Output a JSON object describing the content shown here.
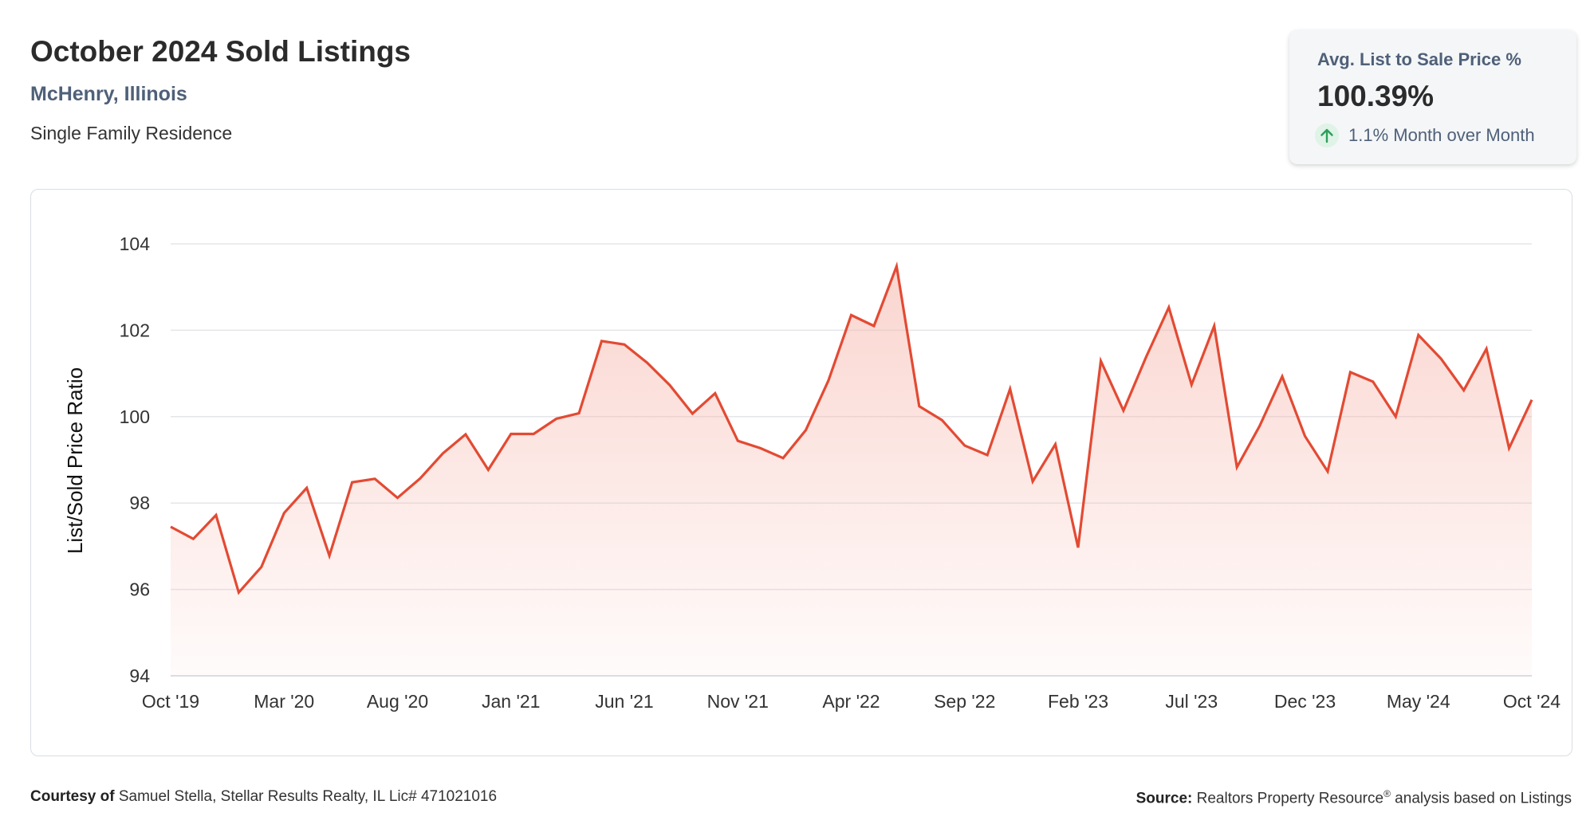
{
  "header": {
    "title": "October 2024 Sold Listings",
    "subtitle": "McHenry, Illinois",
    "property_type": "Single Family Residence"
  },
  "kpi": {
    "label": "Avg. List to Sale Price %",
    "value": "100.39%",
    "change_text": "1.1% Month over Month",
    "trend_icon": "arrow-up-icon"
  },
  "footer": {
    "courtesy_label": "Courtesy of",
    "courtesy_text": "Samuel Stella, Stellar Results Realty, IL Lic# 471021016",
    "source_label": "Source:",
    "source_text_1": "Realtors Property Resource",
    "source_registered": "®",
    "source_text_2": " analysis based on Listings"
  },
  "colors": {
    "line": "#e34a33",
    "fill": "#f6b3a8",
    "grid": "#e3e6ea",
    "subtitle": "#4f6078",
    "trend_up": "#2e9e5b"
  },
  "chart_data": {
    "type": "area",
    "ylabel": "List/Sold Price Ratio",
    "xlabel": "",
    "ylim": [
      94,
      104
    ],
    "yticks": [
      94,
      96,
      98,
      100,
      102,
      104
    ],
    "grid": true,
    "x_tick_labels": [
      "Oct '19",
      "Mar '20",
      "Aug '20",
      "Jan '21",
      "Jun '21",
      "Nov '21",
      "Apr '22",
      "Sep '22",
      "Feb '23",
      "Jul '23",
      "Dec '23",
      "May '24",
      "Oct '24"
    ],
    "x_tick_every": 5,
    "series": [
      {
        "values": [
          97.45,
          97.17,
          97.72,
          95.93,
          96.52,
          97.77,
          98.35,
          96.78,
          98.48,
          98.56,
          98.12,
          98.57,
          99.15,
          99.59,
          98.77,
          99.6,
          99.6,
          99.95,
          100.08,
          101.75,
          101.67,
          101.25,
          100.73,
          100.07,
          100.54,
          99.44,
          99.27,
          99.04,
          99.69,
          100.84,
          102.35,
          102.1,
          103.48,
          100.24,
          99.92,
          99.33,
          99.11,
          100.64,
          98.5,
          99.36,
          96.97,
          101.29,
          100.14,
          101.38,
          102.53,
          100.74,
          102.1,
          98.83,
          99.78,
          100.93,
          99.55,
          98.73,
          101.03,
          100.81,
          100.0,
          101.89,
          101.34,
          100.61,
          101.57,
          99.27,
          100.39
        ]
      }
    ]
  }
}
